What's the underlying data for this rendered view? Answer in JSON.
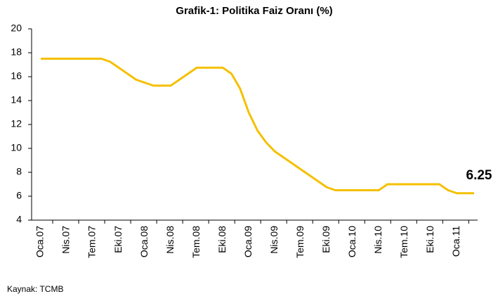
{
  "chart_data": {
    "type": "line",
    "title": "Grafik-1: Politika Faiz Oranı (%)",
    "categories": [
      "Oca.07",
      null,
      null,
      "Nis.07",
      null,
      null,
      "Tem.07",
      null,
      null,
      "Eki.07",
      null,
      null,
      "Oca.08",
      null,
      null,
      "Nis.08",
      null,
      null,
      "Tem.08",
      null,
      null,
      "Eki.08",
      null,
      null,
      "Oca.09",
      null,
      null,
      "Nis.09",
      null,
      null,
      "Tem.09",
      null,
      null,
      "Eki.09",
      null,
      null,
      "Oca.10",
      null,
      null,
      "Nis.10",
      null,
      null,
      "Tem.10",
      null,
      null,
      "Eki.10",
      null,
      null,
      "Oca.11",
      null,
      null
    ],
    "series": [
      {
        "color": "#f5c000",
        "values": [
          17.5,
          17.5,
          17.5,
          17.5,
          17.5,
          17.5,
          17.5,
          17.5,
          17.25,
          16.75,
          16.25,
          15.75,
          15.5,
          15.25,
          15.25,
          15.25,
          15.75,
          16.25,
          16.75,
          16.75,
          16.75,
          16.75,
          16.25,
          15,
          13,
          11.5,
          10.5,
          9.75,
          9.25,
          8.75,
          8.25,
          7.75,
          7.25,
          6.75,
          6.5,
          6.5,
          6.5,
          6.5,
          6.5,
          6.5,
          7,
          7,
          7,
          7,
          7,
          7,
          7,
          6.5,
          6.25,
          6.25,
          6.25
        ]
      }
    ],
    "ylim": [
      4,
      20
    ],
    "yticks": [
      4,
      6,
      8,
      10,
      12,
      14,
      16,
      18,
      20
    ],
    "grid": false,
    "annotation": "6.25",
    "source": "Kaynak: TCMB"
  }
}
